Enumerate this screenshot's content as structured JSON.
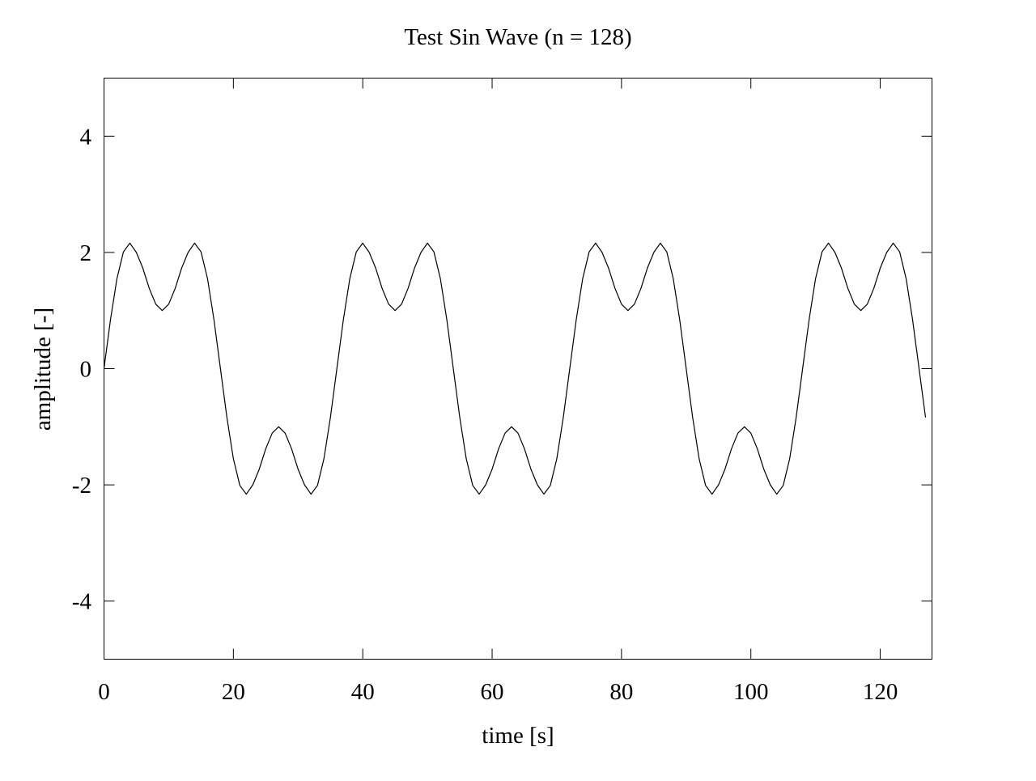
{
  "chart_data": {
    "type": "line",
    "title": "Test Sin Wave (n = 128)",
    "xlabel": "time [s]",
    "ylabel": "amplitude [-]",
    "xlim": [
      0,
      128
    ],
    "ylim": [
      -5,
      5
    ],
    "xticks": [
      0,
      20,
      40,
      60,
      80,
      100,
      120
    ],
    "yticks": [
      -4,
      -2,
      0,
      2,
      4
    ],
    "xtick_labels": [
      "0",
      "20",
      "40",
      "60",
      "80",
      "100",
      "120"
    ],
    "ytick_labels": [
      "-4",
      "-2",
      "0",
      "2",
      "4"
    ],
    "grid": false,
    "legend": "none",
    "line_color": "#000000",
    "series": [
      {
        "x": [
          0,
          1,
          2,
          3,
          4,
          5,
          6,
          7,
          8,
          9,
          10,
          11,
          12,
          13,
          14,
          15,
          16,
          17,
          18,
          19,
          20,
          21,
          22,
          23,
          24,
          25,
          26,
          27,
          28,
          29,
          30,
          31,
          32,
          33,
          34,
          35,
          36,
          37,
          38,
          39,
          40,
          41,
          42,
          43,
          44,
          45,
          46,
          47,
          48,
          49,
          50,
          51,
          52,
          53,
          54,
          55,
          56,
          57,
          58,
          59,
          60,
          61,
          62,
          63,
          64,
          65,
          66,
          67,
          68,
          69,
          70,
          71,
          72,
          73,
          74,
          75,
          76,
          77,
          78,
          79,
          80,
          81,
          82,
          83,
          84,
          85,
          86,
          87,
          88,
          89,
          90,
          91,
          92,
          93,
          94,
          95,
          96,
          97,
          98,
          99,
          100,
          101,
          102,
          103,
          104,
          105,
          106,
          107,
          108,
          109,
          110,
          111,
          112,
          113,
          114,
          115,
          116,
          117,
          118,
          119,
          120,
          121,
          122,
          123,
          124,
          125,
          126,
          127
        ],
        "y": [
          0,
          0.84,
          1.55,
          2.01,
          2.16,
          2.0,
          1.73,
          1.38,
          1.11,
          1.0,
          1.11,
          1.38,
          1.73,
          2.0,
          2.16,
          2.01,
          1.55,
          0.84,
          0,
          -0.84,
          -1.55,
          -2.01,
          -2.16,
          -2.0,
          -1.73,
          -1.38,
          -1.11,
          -1.0,
          -1.11,
          -1.38,
          -1.73,
          -2.0,
          -2.16,
          -2.01,
          -1.55,
          -0.84,
          0,
          0.84,
          1.55,
          2.01,
          2.16,
          2.0,
          1.73,
          1.38,
          1.11,
          1.0,
          1.11,
          1.38,
          1.73,
          2.0,
          2.16,
          2.01,
          1.55,
          0.84,
          0,
          -0.84,
          -1.55,
          -2.01,
          -2.16,
          -2.0,
          -1.73,
          -1.38,
          -1.11,
          -1.0,
          -1.11,
          -1.38,
          -1.73,
          -2.0,
          -2.16,
          -2.01,
          -1.55,
          -0.84,
          0,
          0.84,
          1.55,
          2.01,
          2.16,
          2.0,
          1.73,
          1.38,
          1.11,
          1.0,
          1.11,
          1.38,
          1.73,
          2.0,
          2.16,
          2.01,
          1.55,
          0.84,
          0,
          -0.84,
          -1.55,
          -2.01,
          -2.16,
          -2.0,
          -1.73,
          -1.38,
          -1.11,
          -1.0,
          -1.11,
          -1.38,
          -1.73,
          -2.0,
          -2.16,
          -2.01,
          -1.55,
          -0.84,
          0,
          0.84,
          1.55,
          2.01,
          2.16,
          2.0,
          1.73,
          1.38,
          1.11,
          1.0,
          1.11,
          1.38,
          1.73,
          2.0,
          2.16,
          2.01,
          1.55,
          0.84,
          0,
          -0.84
        ]
      }
    ]
  }
}
